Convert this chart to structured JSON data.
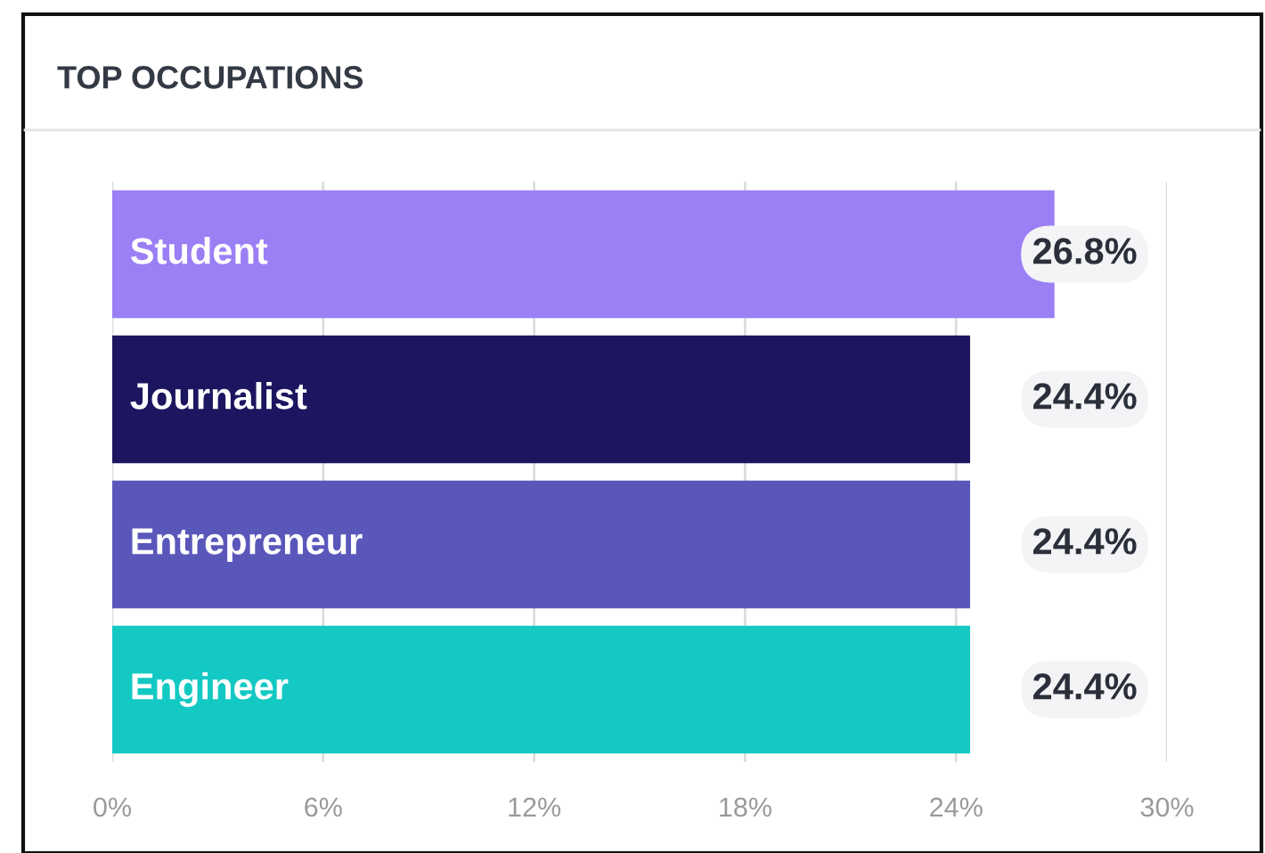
{
  "chart_data": {
    "type": "bar",
    "orientation": "horizontal",
    "title": "TOP OCCUPATIONS",
    "categories": [
      "Student",
      "Journalist",
      "Entrepreneur",
      "Engineer"
    ],
    "values": [
      26.8,
      24.4,
      24.4,
      24.4
    ],
    "colors": [
      "#9b7ff5",
      "#1c1660",
      "#5a57bb",
      "#14c9c3"
    ],
    "value_labels": [
      "26.8%",
      "24.4%",
      "24.4%",
      "24.4%"
    ],
    "xlim": [
      0,
      30
    ],
    "xticks": [
      {
        "value": 0,
        "label": "0%"
      },
      {
        "value": 6,
        "label": "6%"
      },
      {
        "value": 12,
        "label": "12%"
      },
      {
        "value": 18,
        "label": "18%"
      },
      {
        "value": 24,
        "label": "24%"
      },
      {
        "value": 30,
        "label": "30%"
      }
    ],
    "grid": "x",
    "legend": false
  }
}
